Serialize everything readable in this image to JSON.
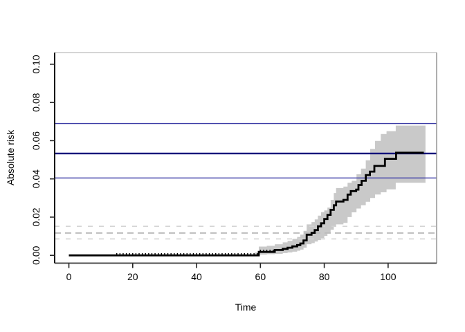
{
  "figure": {
    "background": "#ffffff"
  },
  "chart_data": {
    "type": "line",
    "subtype": "step-cumulative-incidence-with-confidence-band",
    "title": "",
    "xlabel": "Time",
    "ylabel": "Absolute risk",
    "xlim": [
      -4.45,
      115.2
    ],
    "ylim": [
      -0.0041,
      0.1061
    ],
    "x_ticks": [
      0,
      20,
      40,
      60,
      80,
      100
    ],
    "y_ticks": [
      0,
      0.02,
      0.04,
      0.06,
      0.08,
      0.1
    ],
    "y_tick_labels": [
      "0.00",
      "0.02",
      "0.04",
      "0.06",
      "0.08",
      "0.10"
    ],
    "grid": false,
    "legend": "none",
    "series": [
      {
        "name": "absolute-risk",
        "type": "step",
        "color": "#000000",
        "line_width": 2.8,
        "x": [
          0,
          59.5,
          64.5,
          67,
          68.5,
          70,
          71.5,
          72.5,
          73.5,
          74.5,
          76,
          77,
          78,
          79,
          80,
          81,
          82,
          83,
          83.7,
          86,
          87.3,
          88.3,
          90,
          90.7,
          91.7,
          93,
          94.3,
          95.7,
          99,
          102.5
        ],
        "y": [
          0,
          0.0018,
          0.0028,
          0.0034,
          0.004,
          0.0047,
          0.0054,
          0.0062,
          0.0078,
          0.0108,
          0.0118,
          0.0132,
          0.0152,
          0.0168,
          0.019,
          0.0212,
          0.0238,
          0.0262,
          0.0282,
          0.029,
          0.0318,
          0.0336,
          0.0344,
          0.0368,
          0.039,
          0.042,
          0.0438,
          0.0468,
          0.0505,
          0.0537
        ],
        "x_end": 111.2
      },
      {
        "name": "confidence-band",
        "type": "step-band",
        "fill": "#c9c9c9",
        "x": [
          58.3,
          59.5,
          62,
          64.5,
          67,
          68.5,
          70,
          71.5,
          72.5,
          73.5,
          74.5,
          76,
          77,
          78,
          79,
          80,
          81,
          82,
          83,
          83.7,
          86,
          87.3,
          88.6,
          90.1,
          91.5,
          93,
          94.4,
          95.9,
          97.7,
          99.5,
          102.4
        ],
        "lower": [
          0.0,
          0.0004,
          0.0006,
          0.0008,
          0.0012,
          0.0015,
          0.0019,
          0.0024,
          0.003,
          0.004,
          0.0058,
          0.0064,
          0.0072,
          0.008,
          0.009,
          0.0102,
          0.0116,
          0.0134,
          0.015,
          0.0162,
          0.017,
          0.02,
          0.0225,
          0.0245,
          0.0262,
          0.028,
          0.03,
          0.0318,
          0.033,
          0.0345,
          0.038
        ],
        "upper": [
          0.0015,
          0.0046,
          0.005,
          0.0058,
          0.0068,
          0.0076,
          0.0086,
          0.0096,
          0.0108,
          0.0128,
          0.0162,
          0.0174,
          0.0188,
          0.0208,
          0.0226,
          0.0235,
          0.025,
          0.029,
          0.0326,
          0.0352,
          0.036,
          0.038,
          0.039,
          0.0424,
          0.0454,
          0.0497,
          0.0557,
          0.0599,
          0.0635,
          0.065,
          0.0679
        ],
        "x_end": 111.7
      }
    ],
    "reference_lines": [
      {
        "name": "risk-upper-ci-line",
        "value": 0.069,
        "color": "#3d3da6",
        "style": "solid",
        "width": 1.4
      },
      {
        "name": "risk-estimate-line",
        "value": 0.0533,
        "color": "#00007a",
        "style": "solid",
        "width": 2.4
      },
      {
        "name": "risk-lower-ci-line",
        "value": 0.0405,
        "color": "#3d3da6",
        "style": "solid",
        "width": 1.4
      },
      {
        "name": "ref-upper-ci-line",
        "value": 0.0152,
        "color": "#d4d4d4",
        "style": "dashed",
        "width": 1.6,
        "dash": [
          7,
          9
        ]
      },
      {
        "name": "ref-estimate-line",
        "value": 0.0117,
        "color": "#bcbcbc",
        "style": "dashed",
        "width": 2.0,
        "dash": [
          9,
          6
        ]
      },
      {
        "name": "ref-lower-ci-line",
        "value": 0.0086,
        "color": "#d4d4d4",
        "style": "dashed",
        "width": 1.6,
        "dash": [
          7,
          9
        ]
      }
    ],
    "censor_mark_times": [
      15,
      16,
      17,
      18,
      19,
      20,
      21,
      22,
      23,
      24,
      25,
      26,
      27,
      28,
      29,
      30,
      31,
      32,
      33,
      34,
      35,
      36,
      37,
      38,
      39,
      40,
      41,
      42,
      43,
      44,
      45,
      46,
      47,
      48,
      49,
      50,
      51,
      52,
      53,
      54,
      55,
      56,
      57,
      58,
      59,
      60,
      61,
      62,
      63,
      64
    ],
    "censor_mark_color": "#000000"
  }
}
